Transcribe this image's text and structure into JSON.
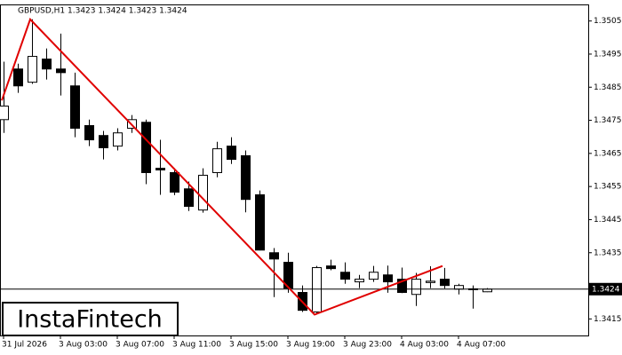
{
  "chart_data": {
    "type": "candlestick",
    "title": "GBPUSD,H1  1.3423 1.3424 1.3423 1.3424",
    "brand": "InstaFintech",
    "categories": [
      "31 Jul 2026",
      null,
      null,
      null,
      "3 Aug 03:00",
      null,
      null,
      null,
      "3 Aug 07:00",
      null,
      null,
      null,
      "3 Aug 11:00",
      null,
      null,
      null,
      "3 Aug 15:00",
      null,
      null,
      null,
      "3 Aug 19:00",
      null,
      null,
      null,
      "3 Aug 23:00",
      null,
      null,
      null,
      "4 Aug 03:00",
      null,
      null,
      null,
      "4 Aug 07:00",
      null,
      null
    ],
    "open": [
      1.34752,
      1.34905,
      1.34865,
      1.34935,
      1.34905,
      1.34854,
      1.34734,
      1.34704,
      1.34672,
      1.34726,
      1.34744,
      1.34605,
      1.34592,
      1.34543,
      1.34479,
      1.34592,
      1.34672,
      1.34643,
      1.34525,
      1.3435,
      1.34321,
      1.3423,
      1.34171,
      1.3431,
      1.34291,
      1.34262,
      1.3427,
      1.34283,
      1.3427,
      1.34224,
      1.3426,
      1.3427,
      1.3424,
      1.34241,
      1.34232
    ],
    "high": [
      1.34927,
      1.34921,
      1.35055,
      1.34967,
      1.35012,
      1.34894,
      1.34752,
      1.34718,
      1.34726,
      1.34766,
      1.34752,
      1.34691,
      1.34605,
      1.34565,
      1.34605,
      1.34685,
      1.34699,
      1.34659,
      1.34538,
      1.34364,
      1.3435,
      1.34251,
      1.3431,
      1.34329,
      1.34321,
      1.34283,
      1.3431,
      1.34311,
      1.34305,
      1.34289,
      1.34309,
      1.34304,
      1.34256,
      1.34251,
      1.34243
    ],
    "low": [
      1.34712,
      1.34833,
      1.3486,
      1.34873,
      1.34825,
      1.34699,
      1.34672,
      1.34632,
      1.34659,
      1.34712,
      1.34557,
      1.34525,
      1.34524,
      1.34476,
      1.34471,
      1.34578,
      1.34618,
      1.34472,
      1.34357,
      1.34216,
      1.34229,
      1.34171,
      1.34163,
      1.34297,
      1.34256,
      1.34243,
      1.34262,
      1.34229,
      1.34228,
      1.34189,
      1.34243,
      1.34242,
      1.34224,
      1.34181,
      1.34231
    ],
    "close": [
      1.34793,
      1.34854,
      1.34943,
      1.34905,
      1.34894,
      1.34726,
      1.34691,
      1.34667,
      1.34712,
      1.34752,
      1.34592,
      1.346,
      1.34533,
      1.3449,
      1.34584,
      1.34664,
      1.34632,
      1.34511,
      1.34358,
      1.34331,
      1.34243,
      1.34176,
      1.34305,
      1.34302,
      1.3427,
      1.3427,
      1.34291,
      1.34262,
      1.3423,
      1.3427,
      1.34264,
      1.34251,
      1.34251,
      1.3424,
      1.3424
    ],
    "pattern": {
      "color": "#e00000",
      "x": [
        0,
        2,
        22,
        31
      ],
      "values": [
        1.3481,
        1.35055,
        1.34163,
        1.3431
      ]
    },
    "current_price": 1.3424,
    "ylim": [
      1.341,
      1.351
    ],
    "yticks": [
      1.3505,
      1.3495,
      1.3485,
      1.3475,
      1.3465,
      1.3455,
      1.3445,
      1.3435,
      1.3415
    ]
  }
}
